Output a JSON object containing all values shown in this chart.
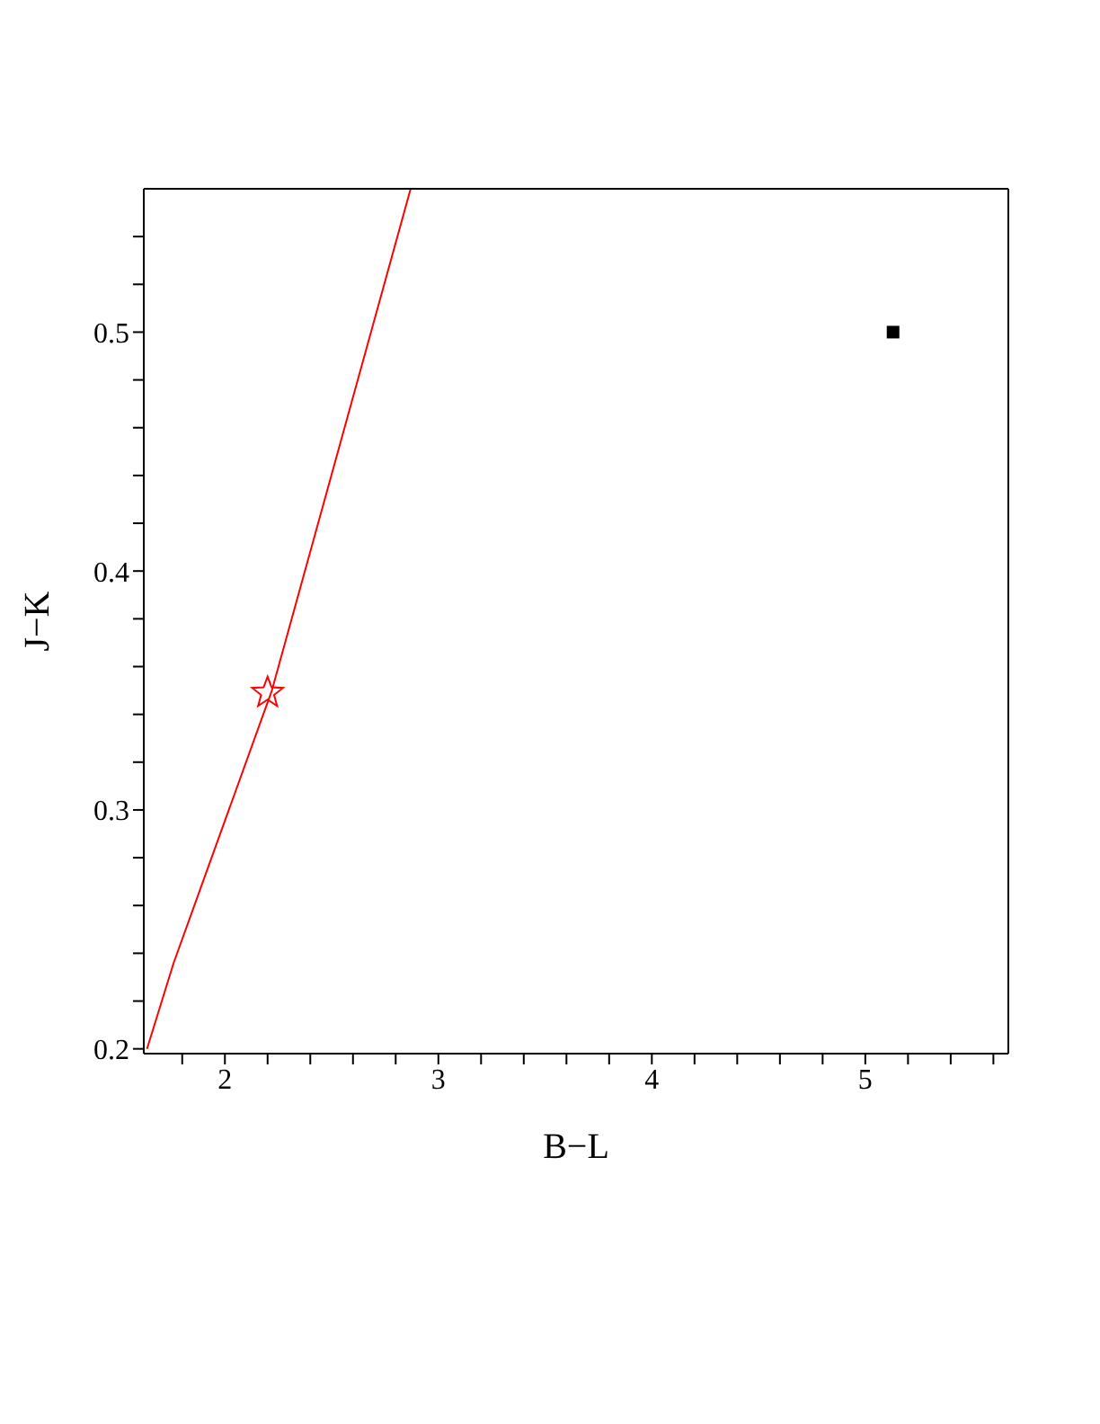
{
  "chart_data": {
    "type": "scatter",
    "xlabel": "B−L",
    "ylabel": "J−K",
    "xlim": [
      1.62,
      5.67
    ],
    "ylim": [
      0.198,
      0.56
    ],
    "xticks": [
      {
        "value": 1.8,
        "label": null
      },
      2,
      {
        "value": 2.2,
        "label": null
      },
      {
        "value": 2.4,
        "label": null
      },
      {
        "value": 2.6,
        "label": null
      },
      {
        "value": 2.8,
        "label": null
      },
      3,
      {
        "value": 3.2,
        "label": null
      },
      {
        "value": 3.4,
        "label": null
      },
      {
        "value": 3.6,
        "label": null
      },
      {
        "value": 3.8,
        "label": null
      },
      4,
      {
        "value": 4.2,
        "label": null
      },
      {
        "value": 4.4,
        "label": null
      },
      {
        "value": 4.6,
        "label": null
      },
      {
        "value": 4.8,
        "label": null
      },
      5,
      {
        "value": 5.2,
        "label": null
      },
      {
        "value": 5.4,
        "label": null
      },
      {
        "value": 5.6,
        "label": null
      }
    ],
    "yticks": [
      0.2,
      {
        "value": 0.22,
        "label": null
      },
      {
        "value": 0.24,
        "label": null
      },
      {
        "value": 0.26,
        "label": null
      },
      {
        "value": 0.28,
        "label": null
      },
      0.3,
      {
        "value": 0.32,
        "label": null
      },
      {
        "value": 0.34,
        "label": null
      },
      {
        "value": 0.36,
        "label": null
      },
      {
        "value": 0.38,
        "label": null
      },
      0.4,
      {
        "value": 0.42,
        "label": null
      },
      {
        "value": 0.44,
        "label": null
      },
      {
        "value": 0.46,
        "label": null
      },
      {
        "value": 0.48,
        "label": null
      },
      0.5,
      {
        "value": 0.52,
        "label": null
      },
      {
        "value": 0.54,
        "label": null
      }
    ],
    "grid": false,
    "series": [
      {
        "type": "line",
        "color": "#ff0000",
        "marker": "none",
        "line_style": "solid",
        "x": [
          1.635,
          1.76,
          2.22,
          2.87
        ],
        "values": [
          0.2,
          0.236,
          0.35,
          0.56
        ]
      },
      {
        "color": "#ff0000",
        "marker": "star",
        "x": [
          2.2
        ],
        "values": [
          0.349
        ]
      },
      {
        "color": "#000000",
        "marker": "square",
        "x": [
          5.13
        ],
        "values": [
          0.5
        ]
      }
    ]
  }
}
